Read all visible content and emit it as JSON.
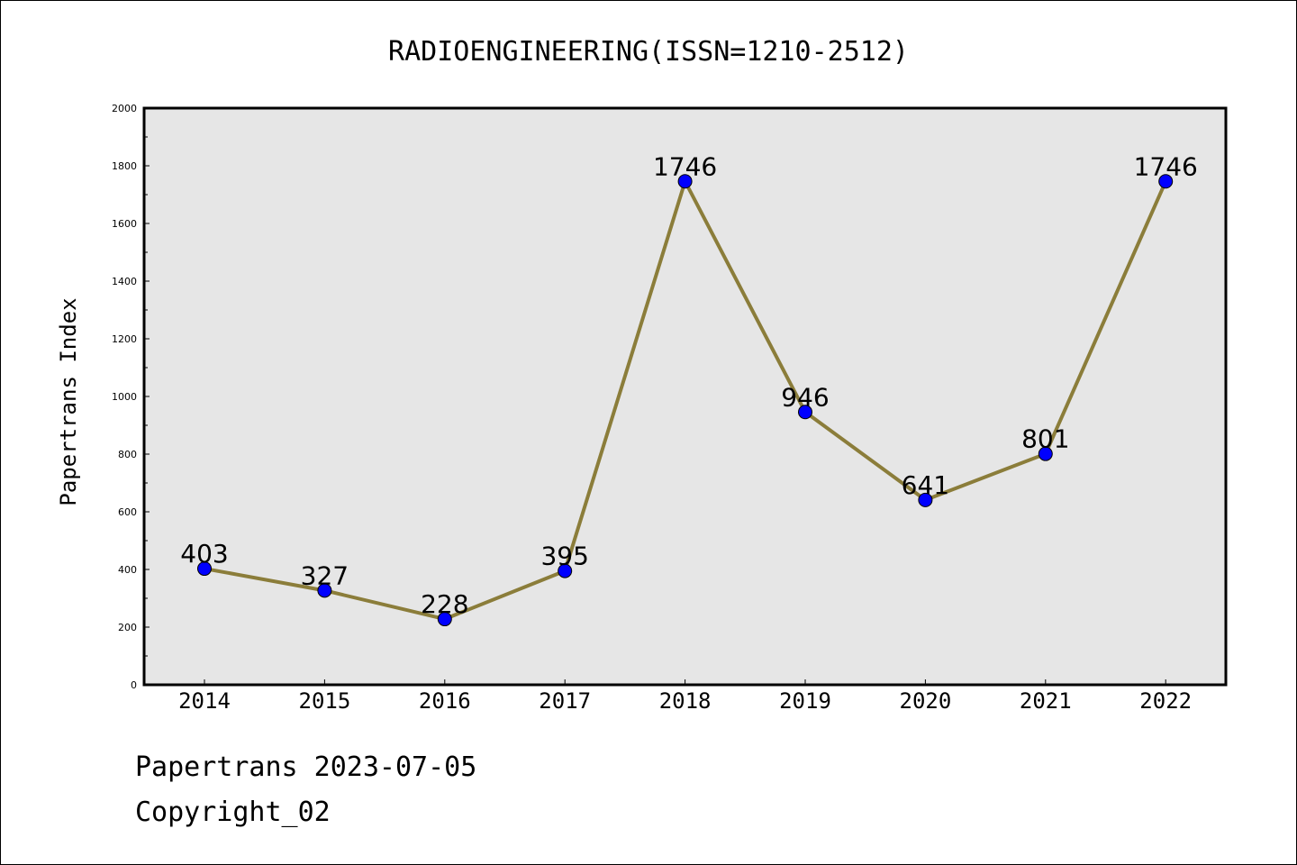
{
  "chart_data": {
    "type": "line",
    "title": "RADIOENGINEERING(ISSN=1210-2512)",
    "xlabel": "",
    "ylabel": "Papertrans Index",
    "categories": [
      "2014",
      "2015",
      "2016",
      "2017",
      "2018",
      "2019",
      "2020",
      "2021",
      "2022"
    ],
    "series": [
      {
        "values": [
          403,
          327,
          228,
          395,
          1746,
          946,
          641,
          801,
          1746
        ]
      }
    ],
    "ylim": [
      0,
      2000
    ],
    "yticks": [
      0,
      200,
      400,
      600,
      800,
      1000,
      1200,
      1400,
      1600,
      1800,
      2000
    ],
    "grid": false,
    "colors": {
      "line": "#8B7D3A",
      "marker": "#0000FF",
      "plot_bg": "#E6E6E6"
    }
  },
  "footer": {
    "line1": "Papertrans 2023-07-05",
    "line2": "Copyright_02"
  }
}
